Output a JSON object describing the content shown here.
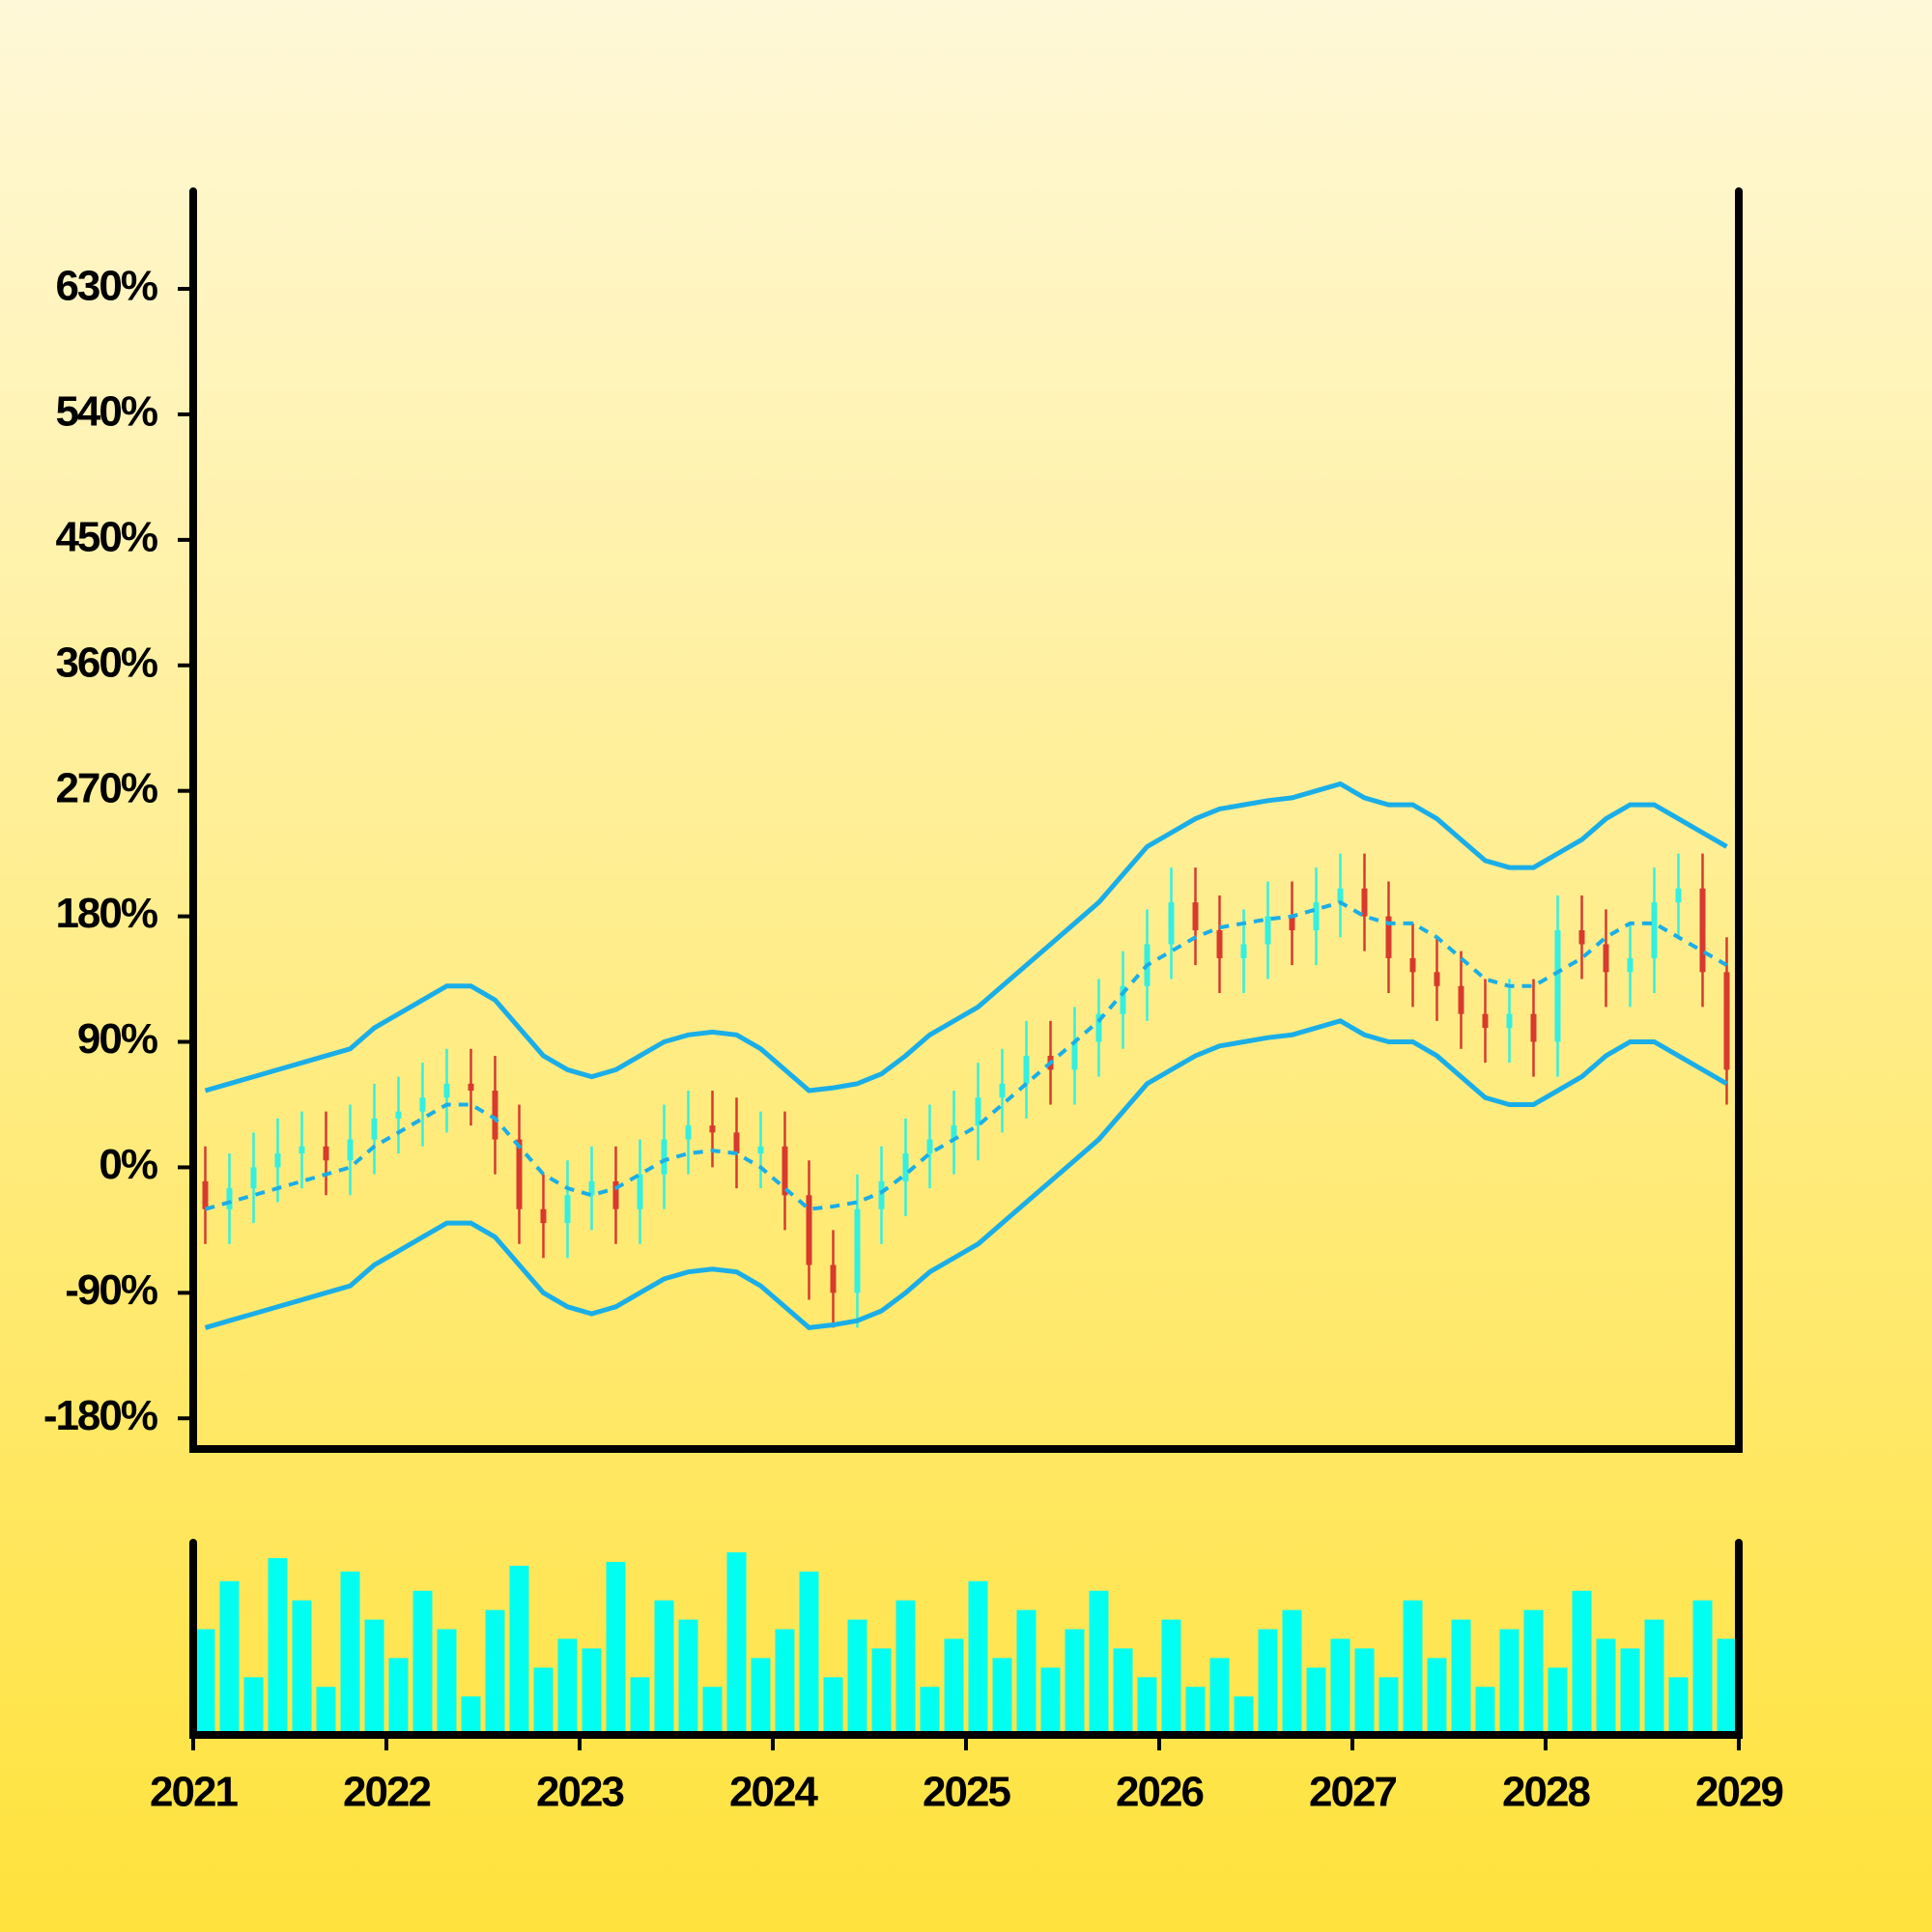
{
  "chart_data": {
    "type": "ohlc",
    "x": [
      2021.0625,
      2021.1875,
      2021.3125,
      2021.4375,
      2021.5625,
      2021.6875,
      2021.8125,
      2021.9375,
      2022.0625,
      2022.1875,
      2022.3125,
      2022.4375,
      2022.5625,
      2022.6875,
      2022.8125,
      2022.9375,
      2023.0625,
      2023.1875,
      2023.3125,
      2023.4375,
      2023.5625,
      2023.6875,
      2023.8125,
      2023.9375,
      2024.0625,
      2024.1875,
      2024.3125,
      2024.4375,
      2024.5625,
      2024.6875,
      2024.8125,
      2024.9375,
      2025.0625,
      2025.1875,
      2025.3125,
      2025.4375,
      2025.5625,
      2025.6875,
      2025.8125,
      2025.9375,
      2026.0625,
      2026.1875,
      2026.3125,
      2026.4375,
      2026.5625,
      2026.6875,
      2026.8125,
      2026.9375,
      2027.0625,
      2027.1875,
      2027.3125,
      2027.4375,
      2027.5625,
      2027.6875,
      2027.8125,
      2027.9375,
      2028.0625,
      2028.1875,
      2028.3125,
      2028.4375,
      2028.5625,
      2028.6875,
      2028.8125,
      2028.9375
    ],
    "open": [
      -10,
      -30,
      -15,
      0,
      10,
      15,
      5,
      20,
      35,
      40,
      50,
      60,
      55,
      20,
      -30,
      -40,
      -20,
      -10,
      -30,
      -5,
      20,
      30,
      25,
      10,
      15,
      -20,
      -70,
      -90,
      -30,
      -10,
      10,
      20,
      30,
      50,
      60,
      80,
      70,
      90,
      110,
      130,
      160,
      190,
      170,
      150,
      160,
      180,
      170,
      190,
      200,
      180,
      150,
      140,
      130,
      110,
      100,
      110,
      90,
      170,
      160,
      140,
      150,
      190,
      200,
      140
    ],
    "high": [
      15,
      10,
      25,
      35,
      40,
      40,
      45,
      60,
      65,
      75,
      85,
      85,
      80,
      45,
      -5,
      5,
      15,
      15,
      20,
      45,
      55,
      55,
      50,
      40,
      40,
      5,
      -45,
      -5,
      15,
      35,
      45,
      55,
      75,
      85,
      105,
      105,
      115,
      135,
      155,
      185,
      215,
      215,
      195,
      185,
      205,
      205,
      215,
      225,
      225,
      205,
      175,
      165,
      155,
      135,
      135,
      135,
      195,
      195,
      185,
      175,
      215,
      225,
      225,
      165
    ],
    "low": [
      -55,
      -55,
      -40,
      -25,
      -15,
      -20,
      -20,
      -5,
      10,
      15,
      25,
      30,
      -5,
      -55,
      -65,
      -65,
      -45,
      -55,
      -55,
      -30,
      -5,
      0,
      -15,
      -15,
      -45,
      -95,
      -115,
      -115,
      -55,
      -35,
      -15,
      -5,
      5,
      25,
      35,
      45,
      45,
      65,
      85,
      105,
      135,
      145,
      125,
      125,
      135,
      145,
      145,
      165,
      155,
      125,
      115,
      105,
      85,
      75,
      75,
      65,
      65,
      135,
      115,
      115,
      125,
      165,
      115,
      45
    ],
    "close": [
      -30,
      -15,
      0,
      10,
      15,
      5,
      20,
      35,
      40,
      50,
      60,
      55,
      20,
      -30,
      -40,
      -20,
      -10,
      -30,
      -5,
      20,
      30,
      25,
      10,
      15,
      -20,
      -70,
      -90,
      -30,
      -10,
      10,
      20,
      30,
      50,
      60,
      80,
      70,
      90,
      110,
      130,
      160,
      190,
      170,
      150,
      160,
      180,
      170,
      190,
      200,
      180,
      150,
      140,
      130,
      110,
      100,
      110,
      90,
      170,
      160,
      140,
      150,
      190,
      200,
      140,
      70
    ],
    "volume": [
      55,
      80,
      30,
      92,
      70,
      25,
      85,
      60,
      40,
      75,
      55,
      20,
      65,
      88,
      35,
      50,
      45,
      90,
      30,
      70,
      60,
      25,
      95,
      40,
      55,
      85,
      30,
      60,
      45,
      70,
      25,
      50,
      80,
      40,
      65,
      35,
      55,
      75,
      45,
      30,
      60,
      25,
      40,
      20,
      55,
      65,
      35,
      50,
      45,
      30,
      70,
      40,
      60,
      25,
      55,
      65,
      35,
      75,
      50,
      45,
      60,
      30,
      70,
      50
    ],
    "upper_band": [
      55,
      60,
      65,
      70,
      75,
      80,
      85,
      100,
      110,
      120,
      130,
      130,
      120,
      100,
      80,
      70,
      65,
      70,
      80,
      90,
      95,
      97,
      95,
      85,
      70,
      55,
      57,
      60,
      67,
      80,
      95,
      105,
      115,
      130,
      145,
      160,
      175,
      190,
      210,
      230,
      240,
      250,
      257,
      260,
      263,
      265,
      270,
      275,
      265,
      260,
      260,
      250,
      235,
      220,
      215,
      215,
      225,
      235,
      250,
      260,
      260,
      250,
      240,
      230
    ],
    "middle_band": [
      -30,
      -25,
      -20,
      -15,
      -10,
      -5,
      0,
      15,
      25,
      35,
      45,
      45,
      35,
      15,
      -5,
      -15,
      -20,
      -15,
      -5,
      5,
      10,
      12,
      10,
      0,
      -15,
      -30,
      -28,
      -25,
      -18,
      -5,
      10,
      20,
      30,
      45,
      60,
      75,
      90,
      105,
      125,
      145,
      155,
      165,
      172,
      175,
      178,
      180,
      185,
      190,
      180,
      175,
      175,
      165,
      150,
      135,
      130,
      130,
      140,
      150,
      165,
      175,
      175,
      165,
      155,
      145
    ],
    "lower_band": [
      -115,
      -110,
      -105,
      -100,
      -95,
      -90,
      -85,
      -70,
      -60,
      -50,
      -40,
      -40,
      -50,
      -70,
      -90,
      -100,
      -105,
      -100,
      -90,
      -80,
      -75,
      -73,
      -75,
      -85,
      -100,
      -115,
      -113,
      -110,
      -103,
      -90,
      -75,
      -65,
      -55,
      -40,
      -25,
      -10,
      5,
      20,
      40,
      60,
      70,
      80,
      87,
      90,
      93,
      95,
      100,
      105,
      95,
      90,
      90,
      80,
      65,
      50,
      45,
      45,
      55,
      65,
      80,
      90,
      90,
      80,
      70,
      60
    ],
    "up_color": "#33f0e0",
    "down_color": "#d83a2e",
    "band_color": "#1aaee8",
    "volume_color": "#00fff0",
    "xlim": [
      2021,
      2029
    ],
    "xticks": [
      2021,
      2022,
      2023,
      2024,
      2025,
      2026,
      2027,
      2028,
      2029
    ],
    "ylim": [
      -202,
      700
    ],
    "yticks": [
      {
        "value": -180,
        "label": "-180%"
      },
      {
        "value": -90,
        "label": "-90%"
      },
      {
        "value": 0,
        "label": "0%"
      },
      {
        "value": 90,
        "label": "90%"
      },
      {
        "value": 180,
        "label": "180%"
      },
      {
        "value": 270,
        "label": "270%"
      },
      {
        "value": 360,
        "label": "360%"
      },
      {
        "value": 450,
        "label": "450%"
      },
      {
        "value": 540,
        "label": "540%"
      },
      {
        "value": 630,
        "label": "630%"
      }
    ],
    "volume_ylim": [
      0,
      100
    ]
  }
}
